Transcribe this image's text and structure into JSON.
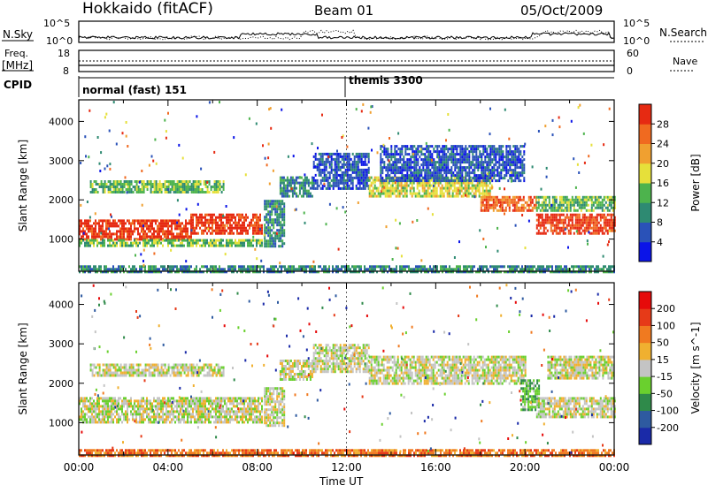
{
  "header": {
    "station": "Hokkaido (fitACF)",
    "beam": "Beam 01",
    "date": "05/Oct/2009"
  },
  "top_panels": {
    "nsky_label": "N.Sky",
    "nsky_ticks": [
      "10^5",
      "10^0"
    ],
    "nsearch_label": "N.Search",
    "nsearch_ticks": [
      "10^5",
      "10^0"
    ],
    "freq_label_1": "Freq.",
    "freq_label_2": "[MHz]",
    "freq_ticks": [
      "18",
      "8"
    ],
    "nave_label": "Nave",
    "nave_ticks": [
      "60",
      "0"
    ],
    "cpid_label": "CPID",
    "cpid_segments": [
      {
        "label": "normal (fast) 151",
        "start_hour": 0
      },
      {
        "label": "themis 3300",
        "start_hour": 11.9
      }
    ]
  },
  "chart_data": [
    {
      "type": "heatmap",
      "panel": "power",
      "ylabel": "Slant Range [km]",
      "ylim": [
        180,
        4550
      ],
      "yticks": [
        1000,
        2000,
        3000,
        4000
      ],
      "xlim": [
        0,
        24
      ],
      "colorbar": {
        "title": "Power [dB]",
        "ticks": [
          "28",
          "24",
          "20",
          "16",
          "12",
          "8",
          "4"
        ],
        "colors": [
          "#0b14e8",
          "#2a52b8",
          "#2e8a72",
          "#4db34d",
          "#e6e03a",
          "#f0a030",
          "#f06a20",
          "#e62a12"
        ]
      },
      "echo_regions": [
        {
          "t0": 0.0,
          "t1": 5.0,
          "r0": 1000,
          "r1": 1500,
          "level": 7
        },
        {
          "t0": 5.0,
          "t1": 8.2,
          "r0": 1150,
          "r1": 1650,
          "level": 7
        },
        {
          "t0": 0.0,
          "t1": 8.2,
          "r0": 800,
          "r1": 1000,
          "level": 3
        },
        {
          "t0": 0.5,
          "t1": 6.5,
          "r0": 2200,
          "r1": 2500,
          "level": 3
        },
        {
          "t0": 8.3,
          "t1": 9.2,
          "r0": 800,
          "r1": 2000,
          "level": 2
        },
        {
          "t0": 9.0,
          "t1": 10.5,
          "r0": 2100,
          "r1": 2600,
          "level": 2
        },
        {
          "t0": 10.5,
          "t1": 13.0,
          "r0": 2300,
          "r1": 3200,
          "level": 1
        },
        {
          "t0": 13.0,
          "t1": 18.5,
          "r0": 2100,
          "r1": 2600,
          "level": 4
        },
        {
          "t0": 13.5,
          "t1": 20.0,
          "r0": 2500,
          "r1": 3400,
          "level": 1
        },
        {
          "t0": 18.0,
          "t1": 20.5,
          "r0": 1700,
          "r1": 2100,
          "level": 6
        },
        {
          "t0": 20.5,
          "t1": 24.0,
          "r0": 1150,
          "r1": 1650,
          "level": 7
        },
        {
          "t0": 20.5,
          "t1": 24.0,
          "r0": 1700,
          "r1": 2100,
          "level": 3
        },
        {
          "t0": 0.0,
          "t1": 24.0,
          "r0": 180,
          "r1": 330,
          "level": 2
        }
      ]
    },
    {
      "type": "heatmap",
      "panel": "velocity",
      "ylabel": "Slant Range [km]",
      "ylim": [
        180,
        4550
      ],
      "yticks": [
        1000,
        2000,
        3000,
        4000
      ],
      "xlim": [
        0,
        24
      ],
      "xticks": [
        "00:00",
        "04:00",
        "08:00",
        "12:00",
        "16:00",
        "20:00",
        "00:00"
      ],
      "xlabel": "Time UT",
      "colorbar": {
        "title": "Velocity [m s^-1]",
        "ticks": [
          "200",
          "100",
          "50",
          "15",
          "-15",
          "-50",
          "-100",
          "-200"
        ],
        "colors": [
          "#1a2aa8",
          "#2e5aa0",
          "#2f8a4a",
          "#6ad02e",
          "#c4c4c4",
          "#f0b030",
          "#f07a20",
          "#e63a18",
          "#e60a0a"
        ]
      },
      "echo_regions": [
        {
          "t0": 0.0,
          "t1": 8.2,
          "r0": 1000,
          "r1": 1650,
          "level": 4
        },
        {
          "t0": 0.5,
          "t1": 6.5,
          "r0": 2200,
          "r1": 2500,
          "level": 4
        },
        {
          "t0": 8.3,
          "t1": 9.2,
          "r0": 900,
          "r1": 1900,
          "level": 4
        },
        {
          "t0": 9.0,
          "t1": 10.5,
          "r0": 2100,
          "r1": 2600,
          "level": 4
        },
        {
          "t0": 10.5,
          "t1": 13.0,
          "r0": 2300,
          "r1": 3000,
          "level": 4
        },
        {
          "t0": 13.0,
          "t1": 20.0,
          "r0": 2000,
          "r1": 2700,
          "level": 4
        },
        {
          "t0": 19.8,
          "t1": 20.6,
          "r0": 1300,
          "r1": 2100,
          "level": 3
        },
        {
          "t0": 20.5,
          "t1": 24.0,
          "r0": 1150,
          "r1": 1650,
          "level": 4
        },
        {
          "t0": 21.0,
          "t1": 24.0,
          "r0": 2100,
          "r1": 2700,
          "level": 4
        },
        {
          "t0": 0.0,
          "t1": 24.0,
          "r0": 180,
          "r1": 330,
          "level": 6
        }
      ]
    }
  ]
}
